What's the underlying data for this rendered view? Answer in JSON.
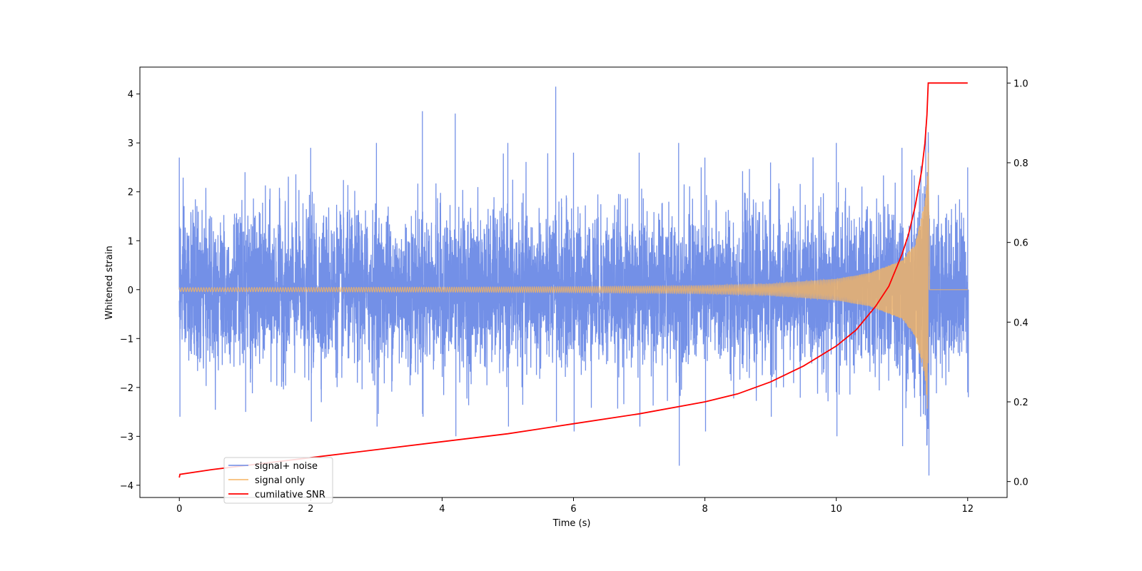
{
  "chart_data": {
    "type": "line",
    "title": "",
    "xlabel": "Time (s)",
    "ylabel": "Whitened strain",
    "xlim": [
      -0.6,
      12.6
    ],
    "ylim": [
      -4.25,
      4.55
    ],
    "y2lim": [
      -0.04,
      1.04
    ],
    "x_ticks": [
      0,
      2,
      4,
      6,
      8,
      10,
      12
    ],
    "y_ticks": [
      -4,
      -3,
      -2,
      -1,
      0,
      1,
      2,
      3,
      4
    ],
    "y2_ticks": [
      0.0,
      0.2,
      0.4,
      0.6,
      0.8,
      1.0
    ],
    "x_tick_labels": [
      "0",
      "2",
      "4",
      "6",
      "8",
      "10",
      "12"
    ],
    "y_tick_labels": [
      "−4",
      "−3",
      "−2",
      "−1",
      "0",
      "1",
      "2",
      "3",
      "4"
    ],
    "y2_tick_labels": [
      "0.0",
      "0.2",
      "0.4",
      "0.6",
      "0.8",
      "1.0"
    ],
    "grid": false,
    "legend_position": "lower-left",
    "series": [
      {
        "name": "signal+ noise",
        "color": "#6b8ae6",
        "axis": "left",
        "style": "dense noise, amplitude about ±1.5 with peaks near ±3, max 4.15 at t≈5.73, min −3.8 at t≈11.4",
        "x_range": [
          0,
          12
        ],
        "envelope": [
          [
            0,
            2.7,
            -2.6
          ],
          [
            1,
            2.4,
            -2.5
          ],
          [
            2,
            2.9,
            -2.7
          ],
          [
            3,
            3.0,
            -2.8
          ],
          [
            3.7,
            3.65,
            -2.6
          ],
          [
            4.2,
            3.6,
            -3.0
          ],
          [
            5,
            3.0,
            -2.8
          ],
          [
            5.73,
            4.15,
            -2.7
          ],
          [
            6,
            2.8,
            -2.9
          ],
          [
            7,
            2.8,
            -2.8
          ],
          [
            7.6,
            3.0,
            -3.6
          ],
          [
            8,
            2.7,
            -2.9
          ],
          [
            9,
            2.6,
            -2.6
          ],
          [
            10,
            3.0,
            -3.0
          ],
          [
            11,
            2.9,
            -3.2
          ],
          [
            11.4,
            2.9,
            -3.8
          ],
          [
            12,
            2.5,
            -2.2
          ]
        ]
      },
      {
        "name": "signal only",
        "color": "#f5b461",
        "axis": "left",
        "style": "chirp: oscillation with amplitude growing toward merger at t≈11.4, then flat at 0",
        "x": [
          0,
          2,
          4,
          6,
          8,
          9,
          10,
          10.5,
          11,
          11.2,
          11.35,
          11.4,
          11.42,
          12
        ],
        "amplitude": [
          0.04,
          0.045,
          0.05,
          0.06,
          0.08,
          0.12,
          0.22,
          0.34,
          0.6,
          0.95,
          1.8,
          2.8,
          0.0,
          0.0
        ]
      },
      {
        "name": "cumilative SNR",
        "color": "#ff0000",
        "axis": "right",
        "x": [
          0,
          0.01,
          0.5,
          1,
          2,
          3,
          4,
          5,
          6,
          7,
          8,
          8.5,
          9,
          9.5,
          10,
          10.3,
          10.6,
          10.8,
          11,
          11.1,
          11.2,
          11.3,
          11.35,
          11.38,
          11.4,
          12
        ],
        "values": [
          0.01,
          0.018,
          0.03,
          0.04,
          0.06,
          0.08,
          0.1,
          0.12,
          0.145,
          0.17,
          0.2,
          0.22,
          0.25,
          0.29,
          0.34,
          0.38,
          0.44,
          0.49,
          0.57,
          0.62,
          0.69,
          0.78,
          0.85,
          0.92,
          1.0,
          1.0
        ]
      }
    ]
  }
}
